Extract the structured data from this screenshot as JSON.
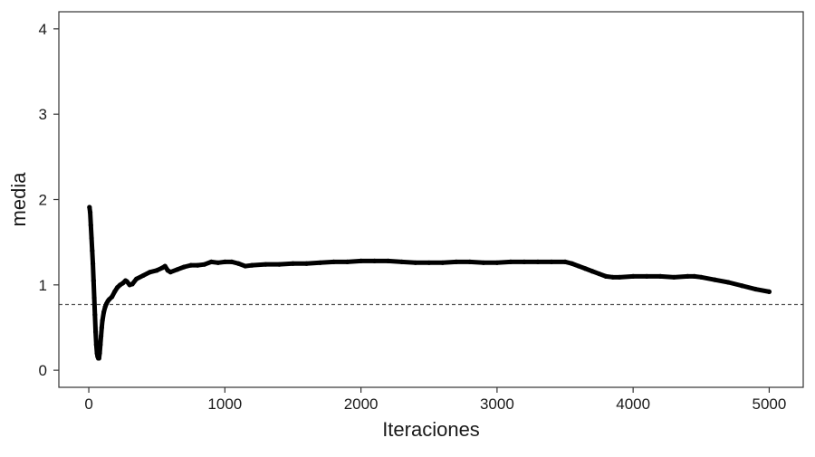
{
  "chart_data": {
    "type": "scatter",
    "title": "",
    "xlabel": "Iteraciones",
    "ylabel": "media",
    "xlim": [
      -220,
      5250
    ],
    "ylim": [
      -0.2,
      4.2
    ],
    "x_ticks": [
      0,
      1000,
      2000,
      3000,
      4000,
      5000
    ],
    "y_ticks": [
      0,
      1,
      2,
      3,
      4
    ],
    "x_tick_labels": [
      "0",
      "1000",
      "2000",
      "3000",
      "4000",
      "5000"
    ],
    "y_tick_labels": [
      "0",
      "1",
      "2",
      "3",
      "4"
    ],
    "grid": false,
    "legend": "none",
    "reference_line": {
      "y": 0.77,
      "style": "dashed"
    },
    "series": [
      {
        "color": "#000000",
        "points": [
          [
            5,
            1.91
          ],
          [
            10,
            1.85
          ],
          [
            15,
            1.7
          ],
          [
            20,
            1.55
          ],
          [
            25,
            1.4
          ],
          [
            30,
            1.25
          ],
          [
            35,
            1.05
          ],
          [
            40,
            0.85
          ],
          [
            45,
            0.65
          ],
          [
            50,
            0.45
          ],
          [
            55,
            0.3
          ],
          [
            60,
            0.2
          ],
          [
            65,
            0.16
          ],
          [
            70,
            0.14
          ],
          [
            75,
            0.14
          ],
          [
            80,
            0.2
          ],
          [
            85,
            0.3
          ],
          [
            90,
            0.4
          ],
          [
            95,
            0.5
          ],
          [
            100,
            0.58
          ],
          [
            110,
            0.68
          ],
          [
            120,
            0.74
          ],
          [
            130,
            0.78
          ],
          [
            140,
            0.81
          ],
          [
            150,
            0.83
          ],
          [
            170,
            0.86
          ],
          [
            190,
            0.92
          ],
          [
            210,
            0.97
          ],
          [
            230,
            1.0
          ],
          [
            250,
            1.02
          ],
          [
            270,
            1.05
          ],
          [
            280,
            1.04
          ],
          [
            300,
            1.0
          ],
          [
            320,
            1.01
          ],
          [
            350,
            1.07
          ],
          [
            400,
            1.11
          ],
          [
            450,
            1.15
          ],
          [
            500,
            1.17
          ],
          [
            540,
            1.2
          ],
          [
            560,
            1.22
          ],
          [
            580,
            1.17
          ],
          [
            600,
            1.15
          ],
          [
            650,
            1.18
          ],
          [
            700,
            1.21
          ],
          [
            750,
            1.23
          ],
          [
            800,
            1.23
          ],
          [
            850,
            1.24
          ],
          [
            900,
            1.27
          ],
          [
            950,
            1.26
          ],
          [
            1000,
            1.27
          ],
          [
            1050,
            1.27
          ],
          [
            1100,
            1.25
          ],
          [
            1150,
            1.22
          ],
          [
            1200,
            1.23
          ],
          [
            1300,
            1.24
          ],
          [
            1400,
            1.24
          ],
          [
            1500,
            1.25
          ],
          [
            1600,
            1.25
          ],
          [
            1700,
            1.26
          ],
          [
            1800,
            1.27
          ],
          [
            1900,
            1.27
          ],
          [
            2000,
            1.28
          ],
          [
            2100,
            1.28
          ],
          [
            2200,
            1.28
          ],
          [
            2300,
            1.27
          ],
          [
            2400,
            1.26
          ],
          [
            2500,
            1.26
          ],
          [
            2600,
            1.26
          ],
          [
            2700,
            1.27
          ],
          [
            2800,
            1.27
          ],
          [
            2900,
            1.26
          ],
          [
            3000,
            1.26
          ],
          [
            3100,
            1.27
          ],
          [
            3200,
            1.27
          ],
          [
            3300,
            1.27
          ],
          [
            3400,
            1.27
          ],
          [
            3500,
            1.27
          ],
          [
            3550,
            1.25
          ],
          [
            3600,
            1.22
          ],
          [
            3650,
            1.19
          ],
          [
            3700,
            1.16
          ],
          [
            3750,
            1.13
          ],
          [
            3800,
            1.1
          ],
          [
            3850,
            1.09
          ],
          [
            3900,
            1.09
          ],
          [
            4000,
            1.1
          ],
          [
            4100,
            1.1
          ],
          [
            4200,
            1.1
          ],
          [
            4300,
            1.09
          ],
          [
            4400,
            1.1
          ],
          [
            4450,
            1.1
          ],
          [
            4500,
            1.09
          ],
          [
            4600,
            1.06
          ],
          [
            4700,
            1.03
          ],
          [
            4800,
            0.99
          ],
          [
            4900,
            0.95
          ],
          [
            5000,
            0.92
          ]
        ]
      }
    ]
  }
}
